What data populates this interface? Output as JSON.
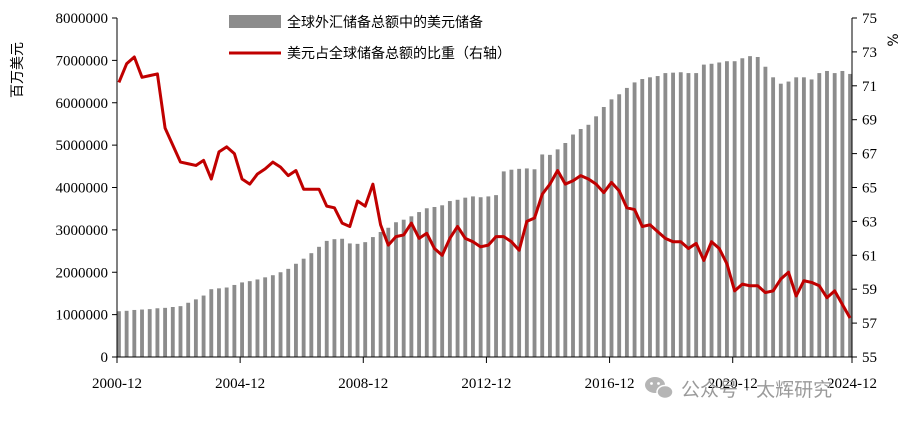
{
  "watermark": {
    "text": "公众号 · 太辉研究"
  },
  "chart_data": {
    "type": "bar+line",
    "title": "",
    "ylabel": "百万美元",
    "y2label": "%",
    "ylim": [
      0,
      8000000
    ],
    "y2lim": [
      55,
      75
    ],
    "yticks": [
      "0",
      "1000000",
      "2000000",
      "3000000",
      "4000000",
      "5000000",
      "6000000",
      "7000000",
      "8000000"
    ],
    "y2ticks": [
      "55",
      "57",
      "59",
      "61",
      "63",
      "65",
      "67",
      "69",
      "71",
      "73",
      "75"
    ],
    "xticks": [
      "2000-12",
      "2004-12",
      "2008-12",
      "2012-12",
      "2016-12",
      "2020-12",
      "2024-12"
    ],
    "grid": false,
    "legend_position": "top-center",
    "start_quarter": "2000-12",
    "series": [
      {
        "name": "全球外汇储备总额中的美元储备",
        "kind": "bar",
        "axis": "left",
        "color": "#8c8c8c",
        "values": [
          1080000,
          1090000,
          1110000,
          1120000,
          1130000,
          1150000,
          1160000,
          1180000,
          1200000,
          1280000,
          1360000,
          1450000,
          1600000,
          1620000,
          1640000,
          1700000,
          1760000,
          1790000,
          1830000,
          1880000,
          1930000,
          2000000,
          2080000,
          2200000,
          2320000,
          2450000,
          2600000,
          2740000,
          2780000,
          2790000,
          2680000,
          2670000,
          2710000,
          2830000,
          2950000,
          3050000,
          3180000,
          3240000,
          3320000,
          3420000,
          3510000,
          3540000,
          3580000,
          3680000,
          3710000,
          3760000,
          3790000,
          3770000,
          3790000,
          3820000,
          4380000,
          4420000,
          4440000,
          4450000,
          4430000,
          4780000,
          4770000,
          4900000,
          5050000,
          5250000,
          5380000,
          5480000,
          5680000,
          5900000,
          6080000,
          6200000,
          6350000,
          6480000,
          6560000,
          6600000,
          6630000,
          6700000,
          6710000,
          6720000,
          6700000,
          6700000,
          6900000,
          6920000,
          6950000,
          6980000,
          6980000,
          7050000,
          7100000,
          7080000,
          6850000,
          6600000,
          6450000,
          6500000,
          6600000,
          6600000,
          6550000,
          6700000,
          6750000,
          6700000,
          6750000,
          6680000
        ]
      },
      {
        "name": "美元占全球储备总额的比重（右轴）",
        "kind": "line",
        "axis": "right",
        "color": "#c00000",
        "values": [
          71.2,
          72.3,
          72.7,
          71.5,
          71.6,
          71.7,
          68.5,
          67.5,
          66.5,
          66.4,
          66.3,
          66.6,
          65.5,
          67.1,
          67.4,
          67.0,
          65.5,
          65.2,
          65.8,
          66.1,
          66.5,
          66.2,
          65.7,
          66.0,
          64.9,
          64.9,
          64.9,
          63.9,
          63.8,
          62.9,
          62.7,
          64.2,
          63.9,
          65.2,
          62.8,
          61.6,
          62.1,
          62.2,
          62.9,
          62.0,
          62.3,
          61.4,
          61.0,
          62.0,
          62.7,
          62.0,
          61.8,
          61.5,
          61.6,
          62.1,
          62.1,
          61.8,
          61.3,
          63.0,
          63.2,
          64.6,
          65.2,
          66.0,
          65.2,
          65.4,
          65.7,
          65.5,
          65.2,
          64.7,
          65.3,
          64.8,
          63.8,
          63.7,
          62.7,
          62.8,
          62.4,
          62.0,
          61.8,
          61.8,
          61.4,
          61.7,
          60.7,
          61.8,
          61.4,
          60.5,
          58.9,
          59.3,
          59.2,
          59.2,
          58.8,
          58.9,
          59.6,
          60.0,
          58.6,
          59.5,
          59.4,
          59.2,
          58.5,
          58.9,
          58.1,
          57.3
        ]
      }
    ]
  }
}
